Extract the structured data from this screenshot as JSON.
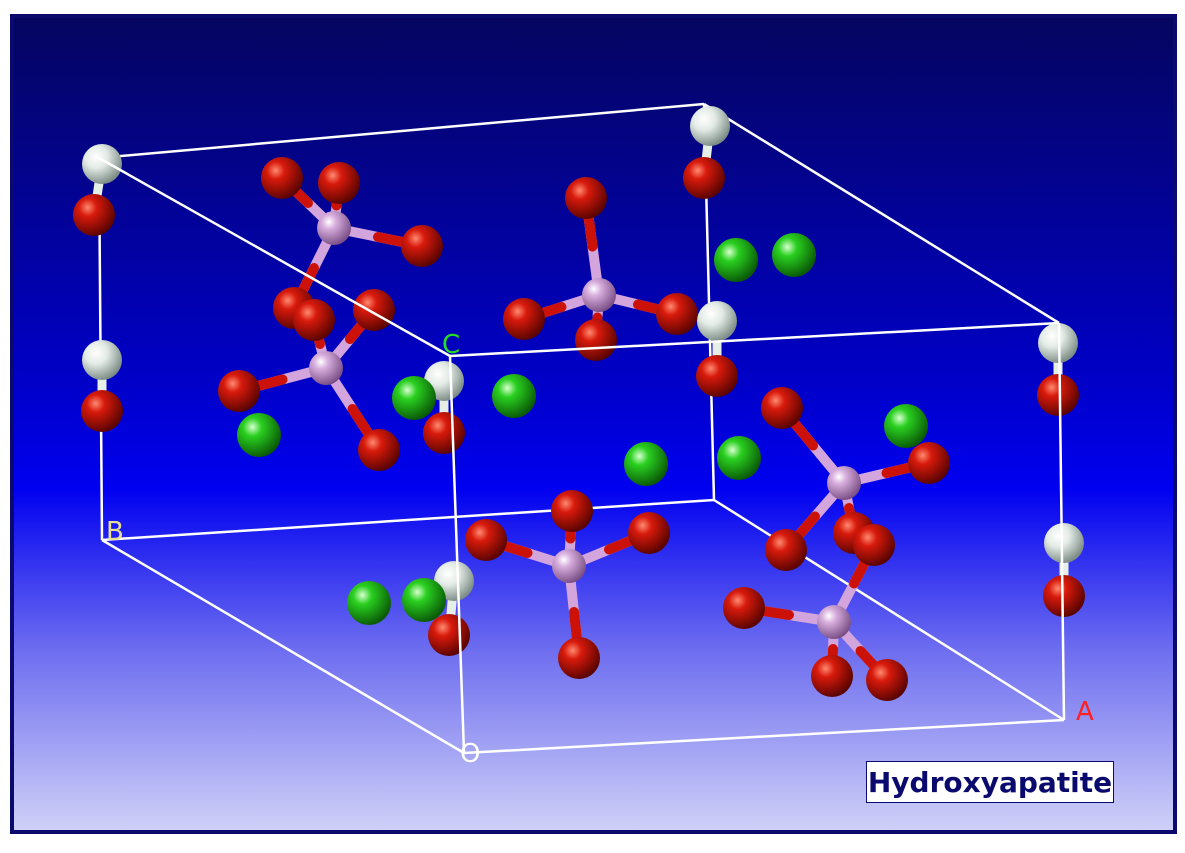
{
  "caption": "Hydroxyapatite",
  "axis_labels": {
    "a": "A",
    "b": "B",
    "c": "C",
    "origin": "O"
  },
  "colors": {
    "oxygen": "#cc1208",
    "phosphorus": "#d4a5dc",
    "calcium": "#22c81a",
    "hydrogen": "#e6eee8",
    "cell_edge": "#ffffff",
    "label_a": "#ff2020",
    "label_b": "#e6e090",
    "label_c": "#22e022",
    "label_origin": "#ffffff",
    "caption_text": "#0a0a6e"
  }
}
